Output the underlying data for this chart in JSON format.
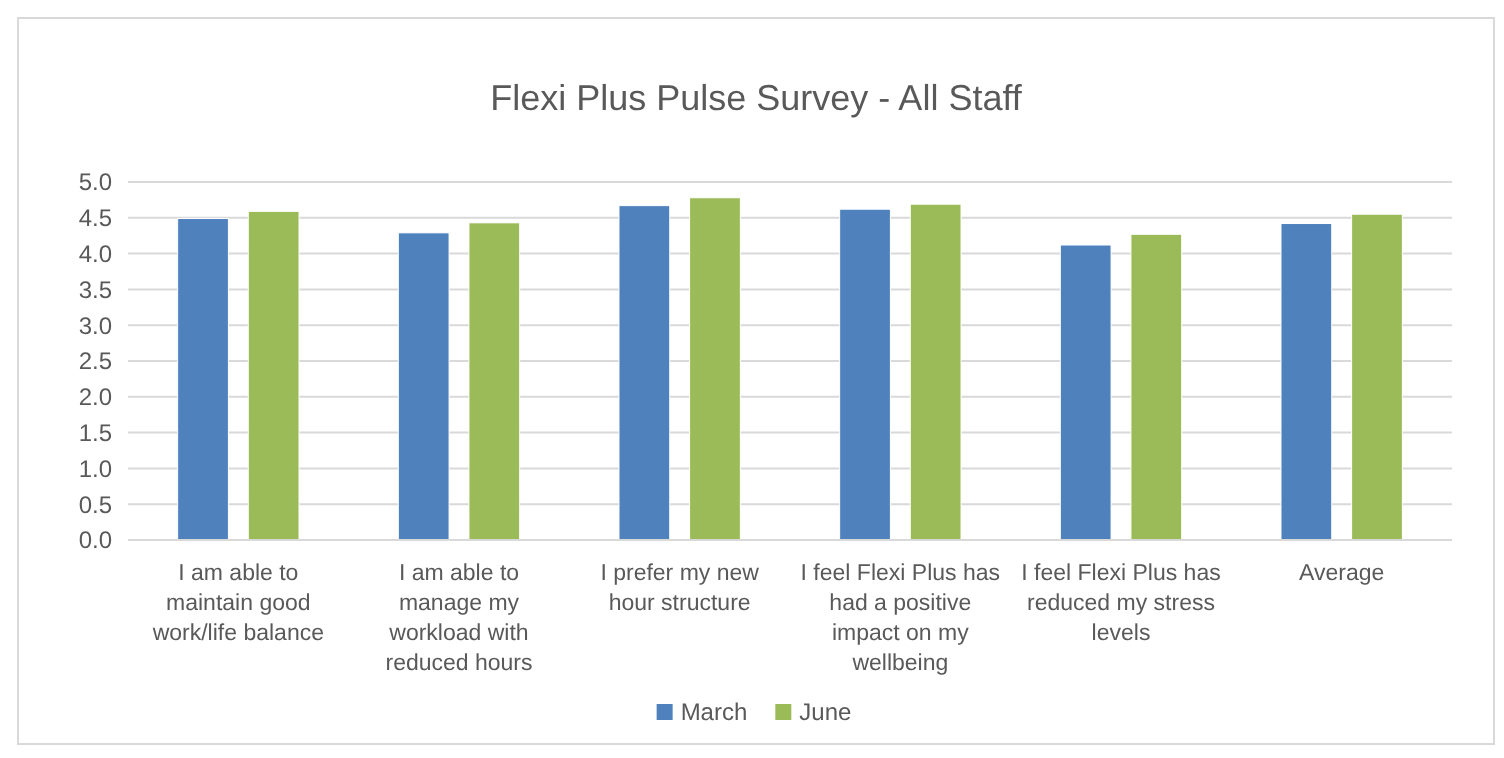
{
  "chart_data": {
    "type": "bar",
    "title": "Flexi Plus Pulse Survey - All Staff",
    "categories": [
      "I am able to maintain good work/life balance",
      "I am able to manage my workload with reduced hours",
      "I prefer my new hour structure",
      "I feel Flexi Plus has had a positive impact on my wellbeing",
      "I feel Flexi Plus has reduced my stress levels",
      "Average"
    ],
    "series": [
      {
        "name": "March",
        "color": "#4f81bd",
        "values": [
          4.49,
          4.29,
          4.67,
          4.62,
          4.12,
          4.42
        ]
      },
      {
        "name": "June",
        "color": "#9bbb59",
        "values": [
          4.59,
          4.43,
          4.78,
          4.69,
          4.27,
          4.55
        ]
      }
    ],
    "ylim": [
      0,
      5
    ],
    "yticks": [
      {
        "value": 0,
        "label": "0.0"
      },
      {
        "value": 0.5,
        "label": "0.5"
      },
      {
        "value": 1,
        "label": "1.0"
      },
      {
        "value": 1.5,
        "label": "1.5"
      },
      {
        "value": 2,
        "label": "2.0"
      },
      {
        "value": 2.5,
        "label": "2.5"
      },
      {
        "value": 3,
        "label": "3.0"
      },
      {
        "value": 3.5,
        "label": "3.5"
      },
      {
        "value": 4,
        "label": "4.0"
      },
      {
        "value": 4.5,
        "label": "4.5"
      },
      {
        "value": 5,
        "label": "5.0"
      }
    ],
    "grid": "y",
    "legend": "bottom"
  }
}
